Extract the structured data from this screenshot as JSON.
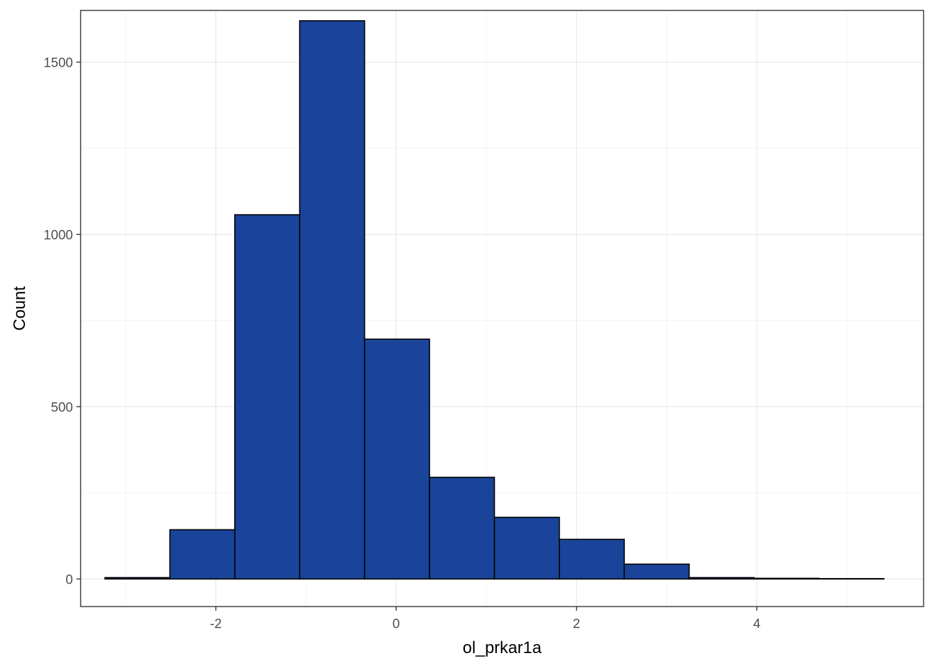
{
  "chart_data": {
    "type": "bar",
    "subtype": "histogram",
    "xlabel": "ol_prkar1a",
    "ylabel": "Count",
    "xlim": [
      -3.5,
      5.85
    ],
    "ylim": [
      -80,
      1650
    ],
    "x_ticks": [
      -2,
      0,
      2,
      4
    ],
    "x_tick_labels": [
      "-2",
      "0",
      "2",
      "4"
    ],
    "y_ticks": [
      0,
      500,
      1000,
      1500
    ],
    "y_tick_labels": [
      "0",
      "500",
      "1000",
      "1500"
    ],
    "bins": [
      {
        "x0": -3.23,
        "x1": -2.51,
        "count": 4
      },
      {
        "x0": -2.51,
        "x1": -1.79,
        "count": 143
      },
      {
        "x0": -1.79,
        "x1": -1.07,
        "count": 1057
      },
      {
        "x0": -1.07,
        "x1": -0.35,
        "count": 1620
      },
      {
        "x0": -0.35,
        "x1": 0.37,
        "count": 696
      },
      {
        "x0": 0.37,
        "x1": 1.09,
        "count": 295
      },
      {
        "x0": 1.09,
        "x1": 1.81,
        "count": 179
      },
      {
        "x0": 1.81,
        "x1": 2.53,
        "count": 115
      },
      {
        "x0": 2.53,
        "x1": 3.25,
        "count": 43
      },
      {
        "x0": 3.25,
        "x1": 3.97,
        "count": 4
      },
      {
        "x0": 3.97,
        "x1": 4.69,
        "count": 2
      },
      {
        "x0": 4.69,
        "x1": 5.41,
        "count": 1
      }
    ],
    "bar_fill": "#1a4499",
    "bar_outline": "#000000",
    "grid": true,
    "legend": "none",
    "theme": "bw"
  }
}
